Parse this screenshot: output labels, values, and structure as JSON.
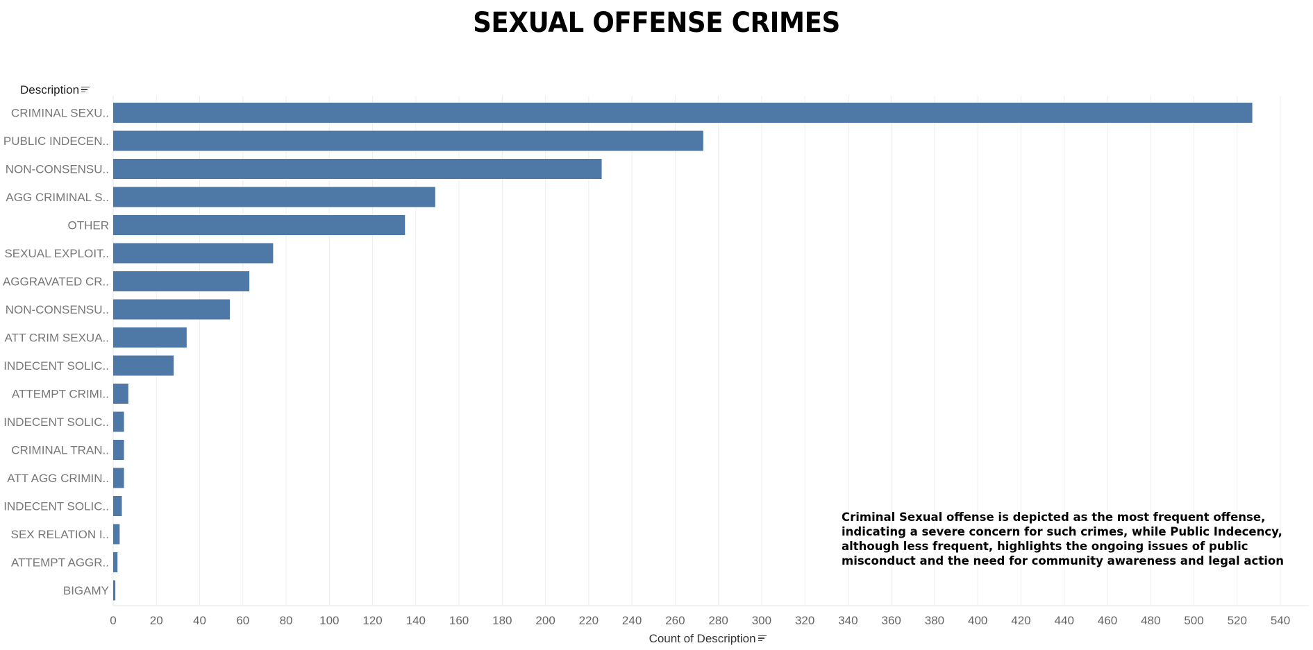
{
  "chart_data": {
    "type": "bar",
    "orientation": "horizontal",
    "title": "SEXUAL OFFENSE CRIMES",
    "ylabel": "Description",
    "xlabel": "Count of Description",
    "categories": [
      "CRIMINAL SEXU..",
      "PUBLIC INDECEN..",
      "NON-CONSENSU..",
      "AGG CRIMINAL S..",
      "OTHER",
      "SEXUAL EXPLOIT..",
      "AGGRAVATED CR..",
      "NON-CONSENSU..",
      "ATT CRIM SEXUA..",
      "INDECENT SOLIC..",
      "ATTEMPT CRIMI..",
      "INDECENT SOLIC..",
      "CRIMINAL TRAN..",
      "ATT AGG CRIMIN..",
      "INDECENT SOLIC..",
      "SEX RELATION I..",
      "ATTEMPT AGGR..",
      "BIGAMY"
    ],
    "values": [
      527,
      273,
      226,
      149,
      135,
      74,
      63,
      54,
      34,
      28,
      7,
      5,
      5,
      5,
      4,
      3,
      2,
      1
    ],
    "xlim": [
      0,
      550
    ],
    "xticks": [
      0,
      20,
      40,
      60,
      80,
      100,
      120,
      140,
      160,
      180,
      200,
      220,
      240,
      260,
      280,
      300,
      320,
      340,
      360,
      380,
      400,
      420,
      440,
      460,
      480,
      500,
      520,
      540
    ],
    "grid": "vertical",
    "bar_color": "#4e79a7",
    "annotation": [
      "Criminal Sexual offense is depicted as the most frequent offense,",
      "indicating a severe concern for such crimes, while Public Indecency,",
      "although less frequent, highlights the ongoing issues of public",
      "misconduct and the need for community awareness and legal action"
    ]
  }
}
